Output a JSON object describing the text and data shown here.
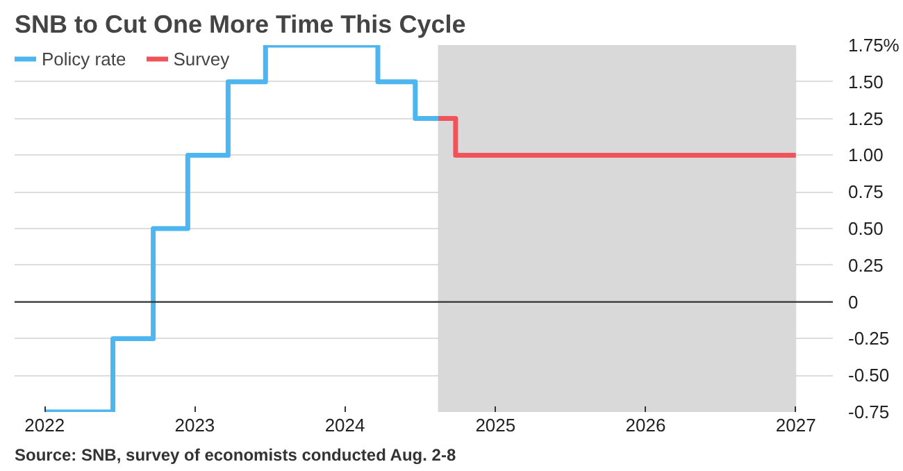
{
  "chart_data": {
    "type": "step",
    "title": "SNB to Cut One More Time This Cycle",
    "series": [
      {
        "name": "Policy rate",
        "color": "#4db5f0",
        "x": [
          "2022-01-01",
          "2022-06-16",
          "2022-09-22",
          "2022-12-15",
          "2023-03-23",
          "2023-06-22",
          "2024-03-21",
          "2024-06-20",
          "2024-08-15"
        ],
        "values": [
          -0.75,
          -0.25,
          0.5,
          1.0,
          1.5,
          1.75,
          1.5,
          1.25,
          1.25
        ]
      },
      {
        "name": "Survey",
        "color": "#f0545a",
        "x": [
          "2024-08-15",
          "2024-09-26",
          "2027-01-01"
        ],
        "values": [
          1.25,
          1.0,
          1.0
        ]
      }
    ],
    "bands": [
      {
        "axis": "x",
        "from": "2024-08-15",
        "to": "2027-01-01",
        "label": null,
        "color": "#d9d9d9"
      }
    ],
    "ref_lines": [
      {
        "axis": "y",
        "value": 0,
        "label": null,
        "color": "#333333"
      }
    ],
    "xlim": [
      "2021-10-20",
      "2027-04-01"
    ],
    "xticks": [
      {
        "value": "2022-01-01",
        "label": "2022"
      },
      {
        "value": "2023-01-01",
        "label": "2023"
      },
      {
        "value": "2024-01-01",
        "label": "2024"
      },
      {
        "value": "2025-01-01",
        "label": "2025"
      },
      {
        "value": "2026-01-01",
        "label": "2026"
      },
      {
        "value": "2027-01-01",
        "label": "2027"
      }
    ],
    "ylim": [
      -0.75,
      1.75
    ],
    "yticks": [
      {
        "value": 1.75,
        "label": "1.75%"
      },
      {
        "value": 1.5,
        "label": "1.50"
      },
      {
        "value": 1.25,
        "label": "1.25"
      },
      {
        "value": 1.0,
        "label": "1.00"
      },
      {
        "value": 0.75,
        "label": "0.75"
      },
      {
        "value": 0.5,
        "label": "0.50"
      },
      {
        "value": 0.25,
        "label": "0.25"
      },
      {
        "value": 0,
        "label": "0"
      },
      {
        "value": -0.25,
        "label": "-0.25"
      },
      {
        "value": -0.5,
        "label": "-0.50"
      },
      {
        "value": -0.75,
        "label": "-0.75"
      }
    ],
    "grid": "y",
    "legend": "top left",
    "line_style": "solid",
    "annotations": [
      "Source: SNB, survey of economists conducted Aug. 2-8"
    ]
  }
}
